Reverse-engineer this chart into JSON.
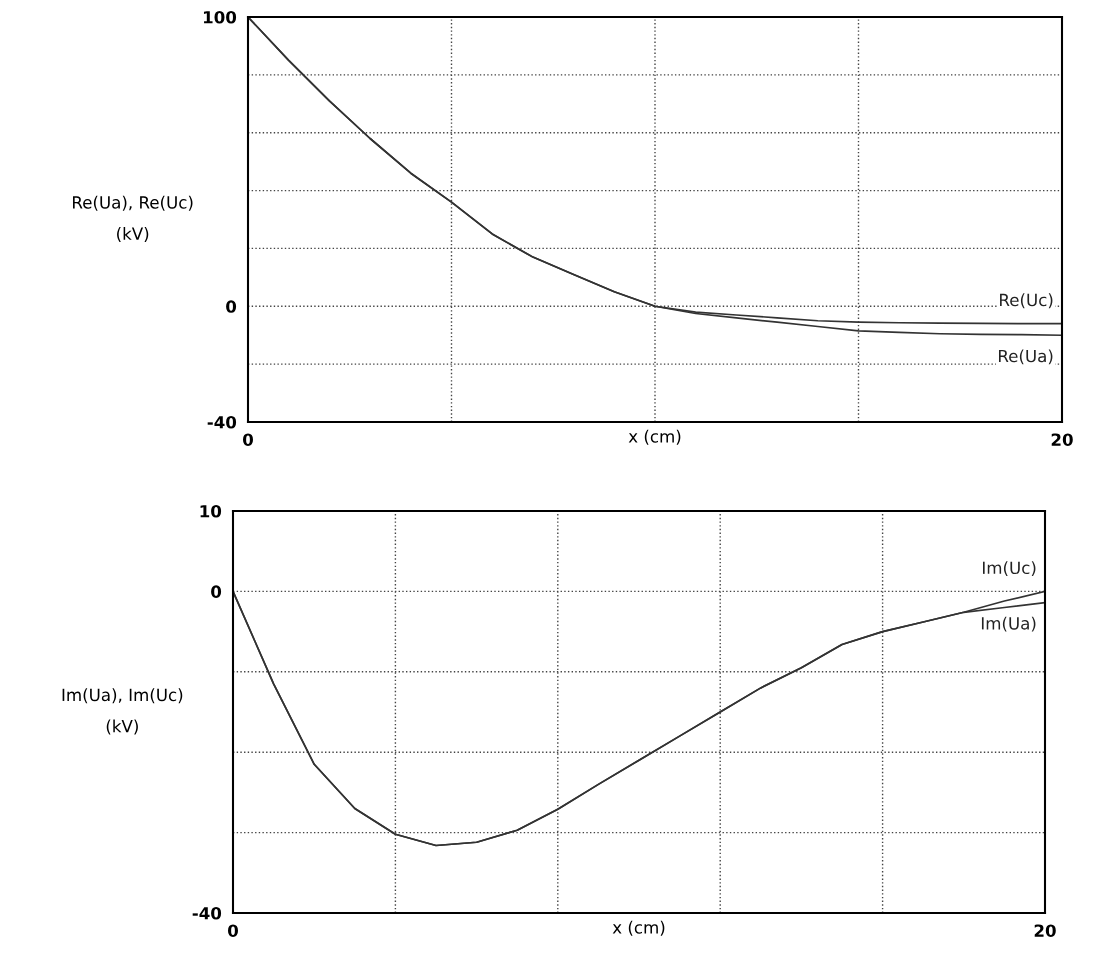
{
  "chart_data": [
    {
      "type": "line",
      "xlabel": "x (cm)",
      "ylabel": "Re(Ua), Re(Uc)\n(kV)",
      "x": [
        0,
        1,
        2,
        3,
        4,
        5,
        6,
        7,
        8,
        9,
        10,
        11,
        12,
        13,
        14,
        15,
        16,
        17,
        18,
        19,
        20
      ],
      "series": [
        {
          "name": "Re(Uc)",
          "color": "#333333",
          "values": [
            100,
            85,
            71,
            58,
            46,
            36,
            25,
            17,
            11,
            5,
            0,
            -2,
            -3,
            -4,
            -5,
            -5.5,
            -5.7,
            -5.8,
            -5.9,
            -6,
            -6
          ]
        },
        {
          "name": "Re(Ua)",
          "color": "#333333",
          "values": [
            100,
            85,
            71,
            58,
            46,
            36,
            25,
            17,
            11,
            5,
            0,
            -2.5,
            -4,
            -5.5,
            -7,
            -8.5,
            -9,
            -9.5,
            -9.7,
            -9.8,
            -10
          ]
        }
      ],
      "xlim": [
        0,
        20
      ],
      "xticks": [
        0,
        {
          "value": 5,
          "label": null
        },
        {
          "value": 10,
          "label": null
        },
        {
          "value": 15,
          "label": null
        },
        20
      ],
      "ylim": [
        -40,
        100
      ],
      "yticks": [
        -40,
        {
          "value": -20,
          "label": null
        },
        0,
        {
          "value": 20,
          "label": null
        },
        {
          "value": 40,
          "label": null
        },
        {
          "value": 60,
          "label": null
        },
        {
          "value": 80,
          "label": null
        },
        100
      ],
      "grid": true,
      "legend": false
    },
    {
      "type": "line",
      "xlabel": "x (cm)",
      "ylabel": "Im(Ua), Im(Uc)\n(kV)",
      "x": [
        0,
        1,
        2,
        3,
        4,
        5,
        6,
        7,
        8,
        9,
        10,
        11,
        12,
        13,
        14,
        15,
        16,
        17,
        18,
        19,
        20
      ],
      "series": [
        {
          "name": "Im(Uc)",
          "color": "#333333",
          "values": [
            0,
            -11.5,
            -21.5,
            -27,
            -30.2,
            -31.6,
            -31.2,
            -29.7,
            -27.1,
            -24,
            -21,
            -18,
            -15,
            -12,
            -9.5,
            -6.6,
            -5,
            -3.8,
            -2.6,
            -1.2,
            0
          ]
        },
        {
          "name": "Im(Ua)",
          "color": "#333333",
          "values": [
            0,
            -11.5,
            -21.5,
            -27,
            -30.2,
            -31.6,
            -31.2,
            -29.7,
            -27.1,
            -24,
            -21,
            -18,
            -15,
            -12,
            -9.5,
            -6.6,
            -5,
            -3.8,
            -2.6,
            -2,
            -1.4
          ]
        }
      ],
      "xlim": [
        0,
        20
      ],
      "xticks": [
        0,
        {
          "value": 4,
          "label": null
        },
        {
          "value": 8,
          "label": null
        },
        {
          "value": 12,
          "label": null
        },
        {
          "value": 16,
          "label": null
        },
        20
      ],
      "ylim": [
        -40,
        10
      ],
      "yticks": [
        -40,
        {
          "value": -30,
          "label": null
        },
        {
          "value": -20,
          "label": null
        },
        {
          "value": -10,
          "label": null
        },
        0,
        10
      ],
      "grid": true,
      "legend": false
    }
  ]
}
